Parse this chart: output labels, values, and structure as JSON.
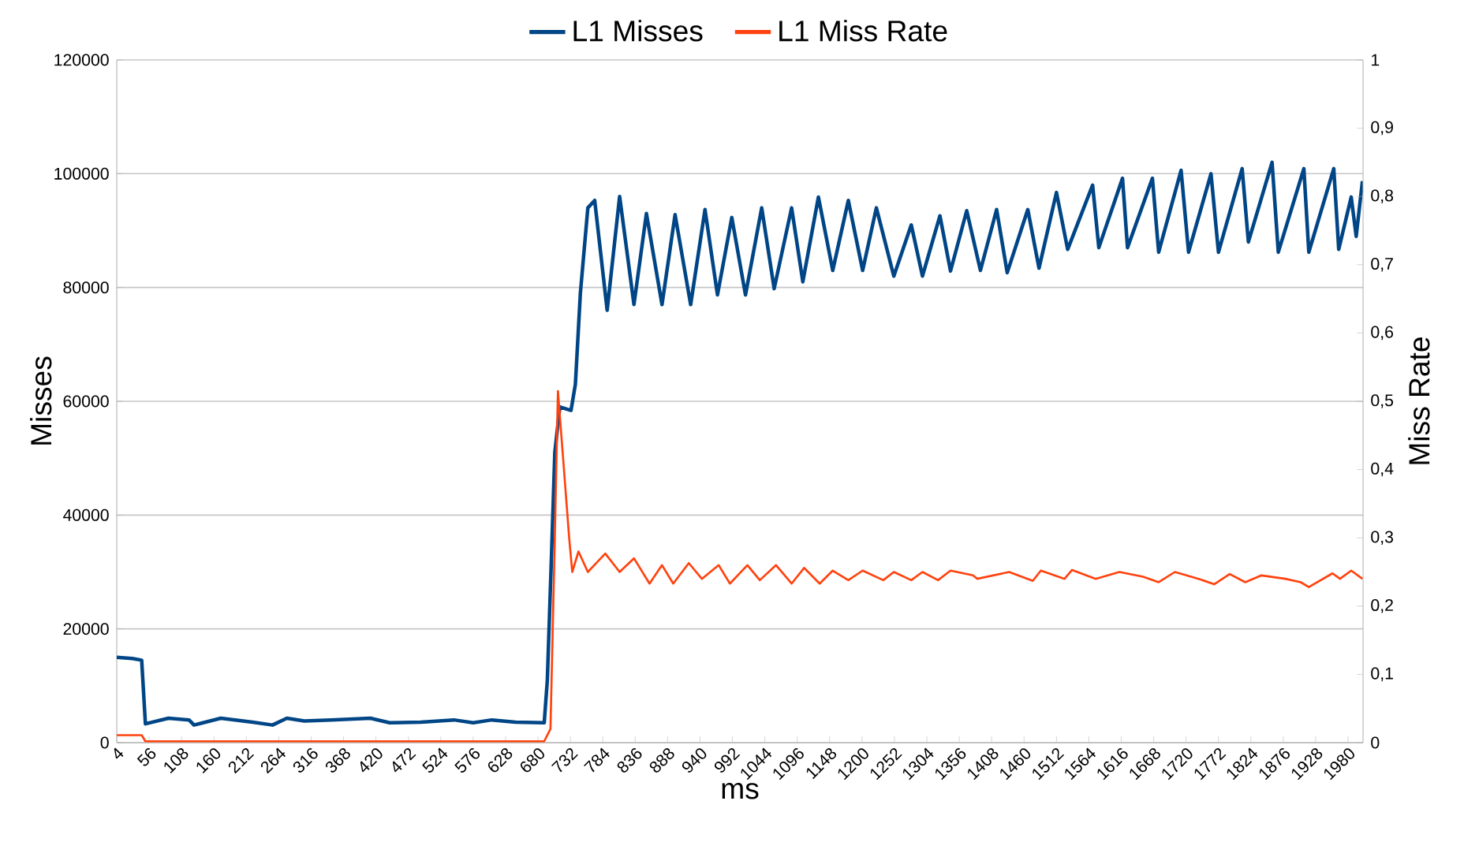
{
  "chart_data": {
    "type": "line",
    "xlabel": "ms",
    "ylabel": "Misses",
    "y2label": "Miss Rate",
    "xlim": [
      4,
      2004
    ],
    "xticks": [
      4,
      56,
      108,
      160,
      212,
      264,
      316,
      368,
      420,
      472,
      524,
      576,
      628,
      680,
      732,
      784,
      836,
      888,
      940,
      992,
      1044,
      1096,
      1148,
      1200,
      1252,
      1304,
      1356,
      1408,
      1460,
      1512,
      1564,
      1616,
      1668,
      1720,
      1772,
      1824,
      1876,
      1928,
      1980
    ],
    "ylim": [
      0,
      120000
    ],
    "yticks": [
      0,
      20000,
      40000,
      60000,
      80000,
      100000,
      120000
    ],
    "y2lim": [
      0,
      1
    ],
    "y2ticks": [
      0,
      {
        "value": 0.1,
        "label": "0,1"
      },
      {
        "value": 0.2,
        "label": "0,2"
      },
      {
        "value": 0.3,
        "label": "0,3"
      },
      {
        "value": 0.4,
        "label": "0,4"
      },
      {
        "value": 0.5,
        "label": "0,5"
      },
      {
        "value": 0.6,
        "label": "0,6"
      },
      {
        "value": 0.7,
        "label": "0,7"
      },
      {
        "value": 0.8,
        "label": "0,8"
      },
      {
        "value": 0.9,
        "label": "0,9"
      },
      1
    ],
    "grid": "y",
    "legend": "top",
    "series": [
      {
        "name": "L1 Misses",
        "color": "#004586",
        "x": [
          4,
          29,
          44,
          50,
          87,
          120,
          128,
          171,
          222,
          254,
          277,
          305,
          348,
          411,
          442,
          492,
          545,
          576,
          606,
          644,
          690,
          695,
          702,
          707,
          715,
          733,
          740,
          748,
          760,
          771,
          791,
          811,
          834,
          854,
          879,
          900,
          925,
          948,
          968,
          991,
          1013,
          1039,
          1059,
          1087,
          1105,
          1130,
          1153,
          1178,
          1201,
          1223,
          1251,
          1279,
          1297,
          1325,
          1342,
          1368,
          1390,
          1416,
          1433,
          1466,
          1484,
          1512,
          1530,
          1570,
          1580,
          1618,
          1626,
          1666,
          1676,
          1712,
          1724,
          1760,
          1772,
          1810,
          1820,
          1858,
          1868,
          1909,
          1917,
          1957,
          1965,
          1985,
          1993,
          2003
        ],
        "values": [
          15000,
          14800,
          14500,
          3300,
          4300,
          4000,
          3100,
          4300,
          3600,
          3100,
          4300,
          3800,
          4000,
          4300,
          3500,
          3600,
          4000,
          3500,
          4000,
          3600,
          3500,
          11000,
          34000,
          51000,
          59000,
          58400,
          63000,
          79000,
          94000,
          95300,
          76000,
          96000,
          77000,
          93000,
          77000,
          92800,
          77000,
          93700,
          78700,
          92300,
          78700,
          94000,
          79800,
          94000,
          81000,
          95900,
          83000,
          95300,
          83000,
          94000,
          82000,
          91000,
          82000,
          92600,
          82900,
          93500,
          83000,
          93700,
          82600,
          93700,
          83400,
          96700,
          86700,
          98000,
          87000,
          99200,
          87000,
          99200,
          86200,
          100600,
          86200,
          100000,
          86200,
          100900,
          88000,
          102000,
          86200,
          100900,
          86200,
          100900,
          86700,
          95900,
          89000,
          98700
        ]
      },
      {
        "name": "L1 Miss Rate",
        "color": "#ff420e",
        "axis": "y2",
        "x": [
          4,
          44,
          50,
          690,
          700,
          702,
          707,
          712,
          720,
          730,
          735,
          745,
          760,
          788,
          811,
          834,
          859,
          879,
          897,
          922,
          943,
          970,
          988,
          1016,
          1036,
          1062,
          1087,
          1107,
          1132,
          1153,
          1178,
          1201,
          1234,
          1251,
          1279,
          1297,
          1322,
          1342,
          1378,
          1385,
          1436,
          1474,
          1487,
          1525,
          1537,
          1575,
          1613,
          1651,
          1676,
          1702,
          1740,
          1765,
          1790,
          1815,
          1841,
          1879,
          1904,
          1917,
          1955,
          1967,
          1985,
          2003
        ],
        "values": [
          0.011,
          0.011,
          0.002,
          0.002,
          0.02,
          0.1,
          0.3,
          0.515,
          0.42,
          0.3,
          0.25,
          0.28,
          0.25,
          0.277,
          0.25,
          0.27,
          0.233,
          0.26,
          0.233,
          0.263,
          0.24,
          0.26,
          0.233,
          0.26,
          0.238,
          0.26,
          0.233,
          0.256,
          0.233,
          0.252,
          0.238,
          0.252,
          0.238,
          0.25,
          0.238,
          0.25,
          0.238,
          0.252,
          0.245,
          0.24,
          0.25,
          0.237,
          0.252,
          0.24,
          0.253,
          0.24,
          0.25,
          0.243,
          0.235,
          0.25,
          0.24,
          0.232,
          0.247,
          0.235,
          0.245,
          0.24,
          0.235,
          0.228,
          0.248,
          0.24,
          0.252,
          0.24
        ]
      }
    ]
  }
}
